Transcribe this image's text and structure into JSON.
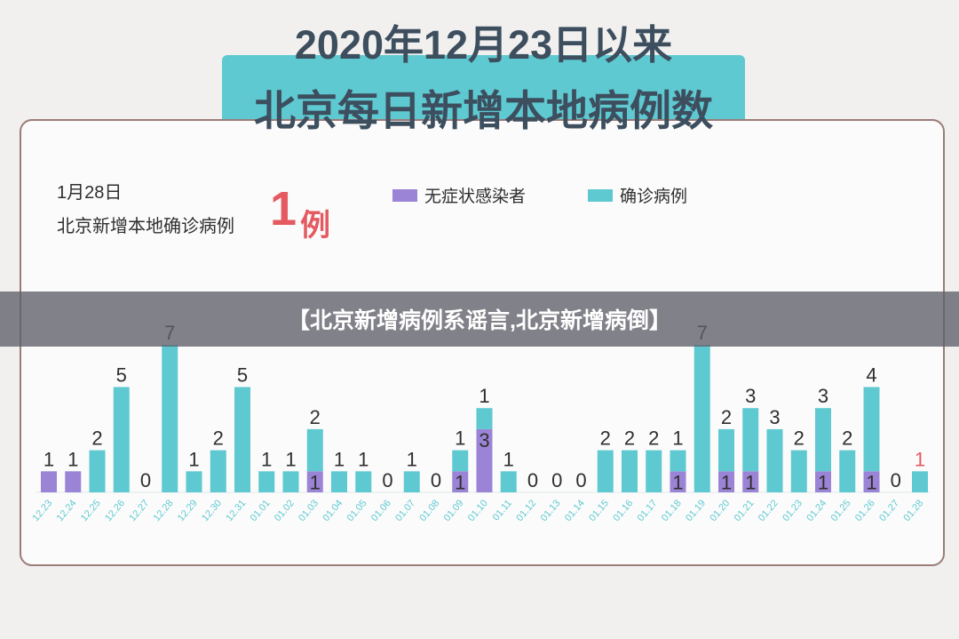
{
  "header": {
    "title_line1": "2020年12月23日以来",
    "title_line2": "北京每日新增本地病例数"
  },
  "info": {
    "date": "1月28日",
    "subtitle": "北京新增本地确诊病例",
    "count": "1",
    "unit": "例"
  },
  "banner": {
    "text": "【北京新增病例系谣言,北京新增病倒】"
  },
  "colors": {
    "asymptomatic": "#9b84d6",
    "confirmed": "#5ec9d1",
    "highlight": "#e45a60",
    "axis_label": "#5ec9d1"
  },
  "chart_data": {
    "type": "bar",
    "stacked": true,
    "legend_position": "top",
    "categories": [
      "12.23",
      "12.24",
      "12.25",
      "12.26",
      "12.27",
      "12.28",
      "12.29",
      "12.30",
      "12.31",
      "01.01",
      "01.02",
      "01.03",
      "01.04",
      "01.05",
      "01.06",
      "01.07",
      "01.08",
      "01.09",
      "01.10",
      "01.11",
      "01.12",
      "01.13",
      "01.14",
      "01.15",
      "01.16",
      "01.17",
      "01.18",
      "01.19",
      "01.20",
      "01.21",
      "01.22",
      "01.23",
      "01.24",
      "01.25",
      "01.26",
      "01.27",
      "01.28"
    ],
    "series": [
      {
        "name": "无症状感染者",
        "values": [
          1,
          1,
          0,
          0,
          0,
          0,
          0,
          0,
          0,
          0,
          0,
          1,
          0,
          0,
          0,
          0,
          0,
          1,
          3,
          0,
          0,
          0,
          0,
          0,
          0,
          0,
          1,
          0,
          1,
          1,
          0,
          0,
          1,
          0,
          1,
          0,
          0
        ]
      },
      {
        "name": "确诊病例",
        "values": [
          0,
          0,
          2,
          5,
          0,
          7,
          1,
          2,
          5,
          1,
          1,
          2,
          1,
          1,
          0,
          1,
          0,
          1,
          1,
          1,
          0,
          0,
          0,
          2,
          2,
          2,
          1,
          7,
          2,
          3,
          3,
          2,
          3,
          2,
          4,
          0,
          1
        ]
      }
    ],
    "ylim": [
      0,
      7
    ]
  }
}
